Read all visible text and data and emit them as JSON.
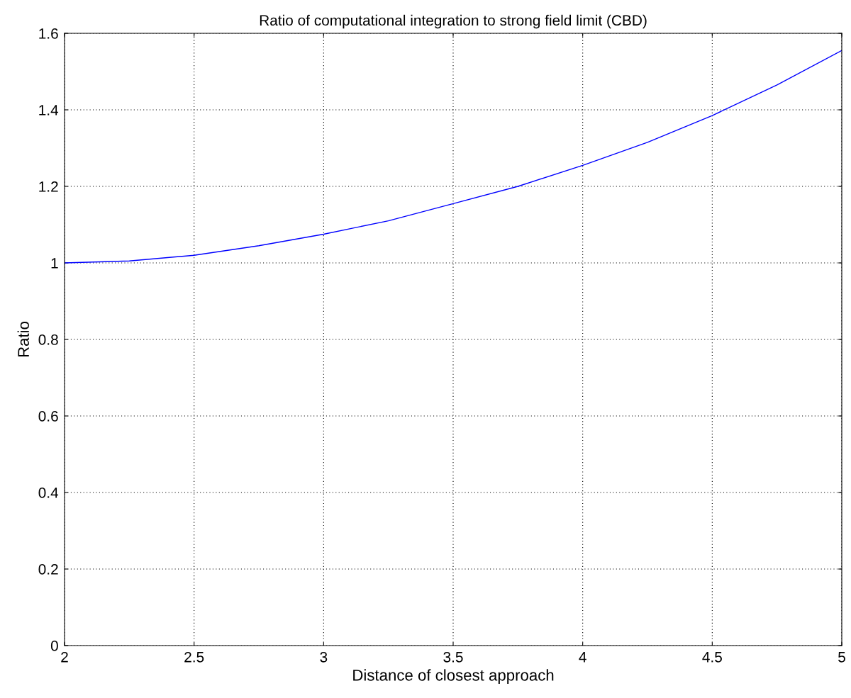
{
  "chart_data": {
    "type": "line",
    "title": "Ratio of computational integration to strong field limit (CBD)",
    "xlabel": "Distance of closest approach",
    "ylabel": "Ratio",
    "x": [
      2,
      2.25,
      2.5,
      2.75,
      3,
      3.25,
      3.5,
      3.75,
      4,
      4.25,
      4.5,
      4.75,
      5
    ],
    "series": [
      {
        "color": "#0000ff",
        "values": [
          1.0,
          1.005,
          1.02,
          1.045,
          1.075,
          1.11,
          1.155,
          1.2,
          1.255,
          1.315,
          1.385,
          1.465,
          1.555
        ]
      }
    ],
    "xlim": [
      2,
      5
    ],
    "xticks": [
      2,
      2.5,
      3,
      3.5,
      4,
      4.5,
      5
    ],
    "ylim": [
      0,
      1.6
    ],
    "yticks": [
      0,
      0.2,
      0.4,
      0.6,
      0.8,
      1,
      1.2,
      1.4,
      1.6
    ],
    "grid": true,
    "line_style": "solid",
    "marker": "none"
  }
}
